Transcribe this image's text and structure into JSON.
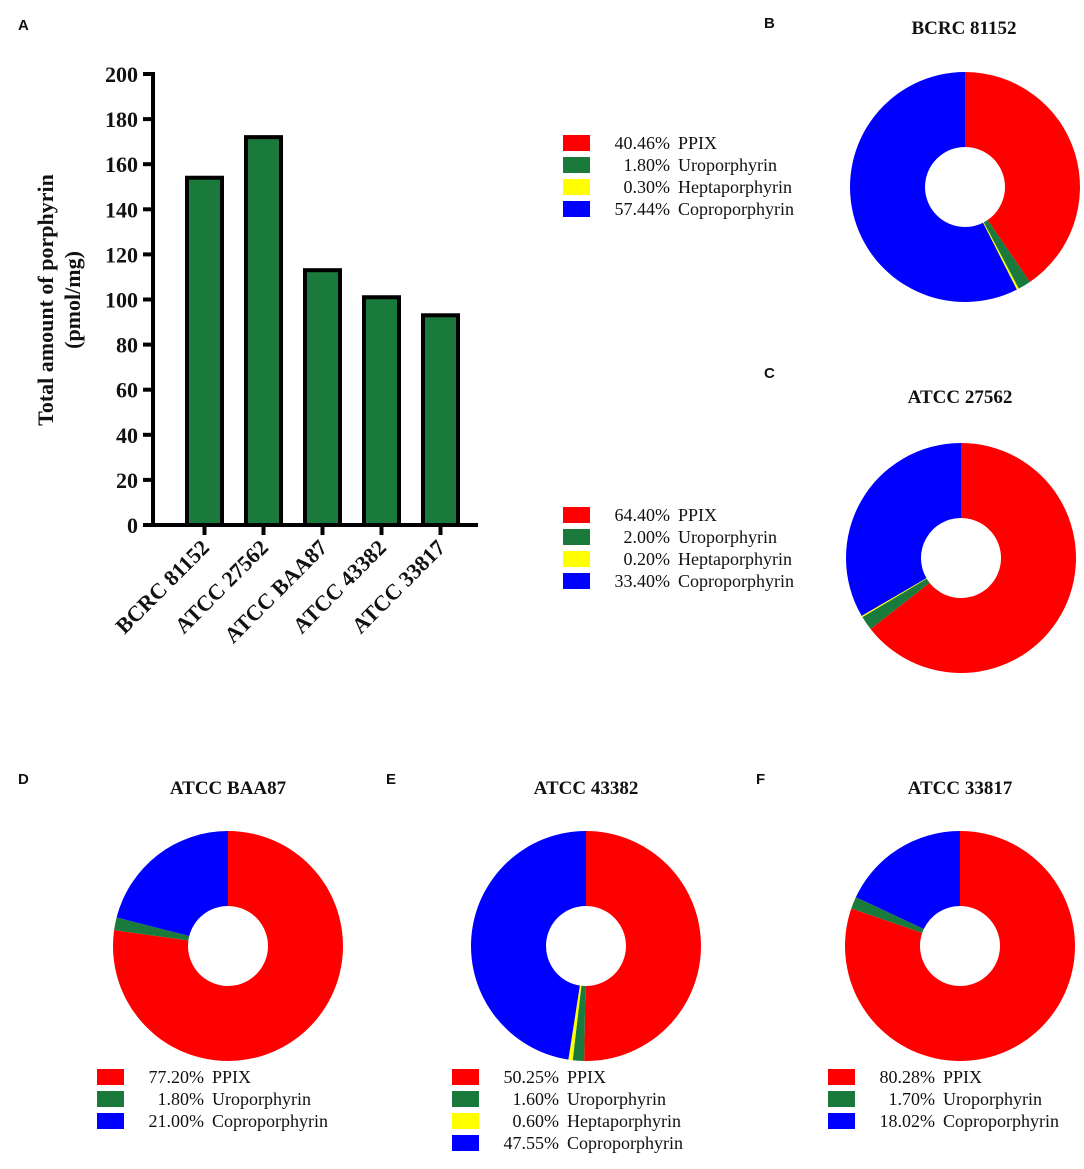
{
  "chart_data": [
    {
      "panel": "A",
      "type": "bar",
      "title": "",
      "xlabel": "",
      "ylabel_line1": "Total amount of porphyrin",
      "ylabel_line2": "(pmol/mg)",
      "categories": [
        "BCRC 81152",
        "ATCC 27562",
        "ATCC BAA87",
        "ATCC 43382",
        "ATCC 33817"
      ],
      "values": [
        154,
        172,
        113,
        101,
        93
      ],
      "ylim": [
        0,
        200
      ],
      "yticks": [
        "0",
        "20",
        "40",
        "60",
        "80",
        "100",
        "120",
        "140",
        "160",
        "180",
        "200"
      ],
      "bar_color": "#1a7a3c"
    },
    {
      "panel": "B",
      "type": "pie",
      "title": "BCRC 81152",
      "slices": [
        {
          "label": "PPIX",
          "pct": "40.46%",
          "value": 40.46,
          "color": "#ff0000"
        },
        {
          "label": "Uroporphyrin",
          "pct": "1.80%",
          "value": 1.8,
          "color": "#1a7a3c"
        },
        {
          "label": "Heptaporphyrin",
          "pct": "0.30%",
          "value": 0.3,
          "color": "#ffff00"
        },
        {
          "label": "Coproporphyrin",
          "pct": "57.44%",
          "value": 57.44,
          "color": "#0000ff"
        }
      ]
    },
    {
      "panel": "C",
      "type": "pie",
      "title": "ATCC 27562",
      "slices": [
        {
          "label": "PPIX",
          "pct": "64.40%",
          "value": 64.4,
          "color": "#ff0000"
        },
        {
          "label": "Uroporphyrin",
          "pct": "2.00%",
          "value": 2.0,
          "color": "#1a7a3c"
        },
        {
          "label": "Heptaporphyrin",
          "pct": "0.20%",
          "value": 0.2,
          "color": "#ffff00"
        },
        {
          "label": "Coproporphyrin",
          "pct": "33.40%",
          "value": 33.4,
          "color": "#0000ff"
        }
      ]
    },
    {
      "panel": "D",
      "type": "pie",
      "title": "ATCC BAA87",
      "slices": [
        {
          "label": "PPIX",
          "pct": "77.20%",
          "value": 77.2,
          "color": "#ff0000"
        },
        {
          "label": "Uroporphyrin",
          "pct": "1.80%",
          "value": 1.8,
          "color": "#1a7a3c"
        },
        {
          "label": "Coproporphyrin",
          "pct": "21.00%",
          "value": 21.0,
          "color": "#0000ff"
        }
      ]
    },
    {
      "panel": "E",
      "type": "pie",
      "title": "ATCC 43382",
      "slices": [
        {
          "label": "PPIX",
          "pct": "50.25%",
          "value": 50.25,
          "color": "#ff0000"
        },
        {
          "label": "Uroporphyrin",
          "pct": "1.60%",
          "value": 1.6,
          "color": "#1a7a3c"
        },
        {
          "label": "Heptaporphyrin",
          "pct": "0.60%",
          "value": 0.6,
          "color": "#ffff00"
        },
        {
          "label": "Coproporphyrin",
          "pct": "47.55%",
          "value": 47.55,
          "color": "#0000ff"
        }
      ]
    },
    {
      "panel": "F",
      "type": "pie",
      "title": "ATCC 33817",
      "slices": [
        {
          "label": "PPIX",
          "pct": "80.28%",
          "value": 80.28,
          "color": "#ff0000"
        },
        {
          "label": "Uroporphyrin",
          "pct": "1.70%",
          "value": 1.7,
          "color": "#1a7a3c"
        },
        {
          "label": "Coproporphyrin",
          "pct": "18.02%",
          "value": 18.02,
          "color": "#0000ff"
        }
      ]
    }
  ]
}
